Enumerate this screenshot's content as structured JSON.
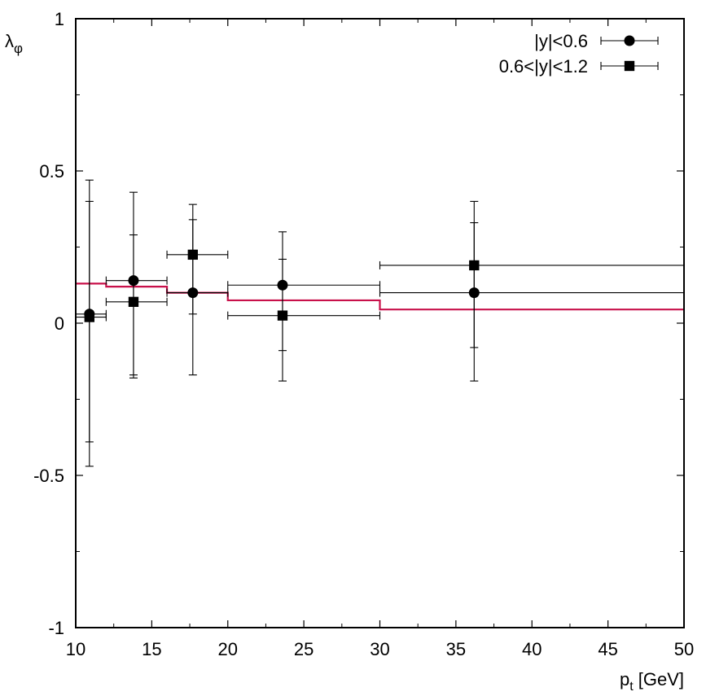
{
  "chart_data": {
    "type": "scatter",
    "title": "",
    "xlabel": {
      "main": "p",
      "sub": "t",
      "unit": " [GeV]"
    },
    "ylabel": {
      "main": "λ",
      "sub": "φ"
    },
    "xlim": [
      10,
      50
    ],
    "ylim": [
      -1,
      1
    ],
    "xticks": [
      10,
      15,
      20,
      25,
      30,
      35,
      40,
      45,
      50
    ],
    "yticks": [
      -1,
      -0.5,
      0,
      0.5,
      1
    ],
    "xtick_labels": [
      "10",
      "15",
      "20",
      "25",
      "30",
      "35",
      "40",
      "45",
      "50"
    ],
    "ytick_labels": [
      "-1",
      "-0.5",
      "0",
      "0.5",
      "1"
    ],
    "legend_position": "top-right",
    "series": [
      {
        "name": "|y|<0.6",
        "marker": "circle",
        "color": "#000000",
        "points": [
          {
            "x": 10.9,
            "y": 0.03,
            "xlo": 10,
            "xhi": 12,
            "ylo": -0.39,
            "yhi": 0.4
          },
          {
            "x": 13.8,
            "y": 0.14,
            "xlo": 12,
            "xhi": 16,
            "ylo": -0.17,
            "yhi": 0.43
          },
          {
            "x": 17.7,
            "y": 0.1,
            "xlo": 16,
            "xhi": 20,
            "ylo": -0.17,
            "yhi": 0.34
          },
          {
            "x": 23.6,
            "y": 0.125,
            "xlo": 20,
            "xhi": 30,
            "ylo": -0.09,
            "yhi": 0.3
          },
          {
            "x": 36.2,
            "y": 0.1,
            "xlo": 30,
            "xhi": 50,
            "ylo": -0.19,
            "yhi": 0.33
          }
        ]
      },
      {
        "name": "0.6<|y|<1.2",
        "marker": "square",
        "color": "#000000",
        "points": [
          {
            "x": 10.9,
            "y": 0.02,
            "xlo": 10,
            "xhi": 12,
            "ylo": -0.47,
            "yhi": 0.47
          },
          {
            "x": 13.8,
            "y": 0.07,
            "xlo": 12,
            "xhi": 16,
            "ylo": -0.18,
            "yhi": 0.29
          },
          {
            "x": 17.7,
            "y": 0.225,
            "xlo": 16,
            "xhi": 20,
            "ylo": 0.03,
            "yhi": 0.39
          },
          {
            "x": 23.6,
            "y": 0.025,
            "xlo": 20,
            "xhi": 30,
            "ylo": -0.19,
            "yhi": 0.21
          },
          {
            "x": 36.2,
            "y": 0.19,
            "xlo": 30,
            "xhi": 50,
            "ylo": -0.08,
            "yhi": 0.4
          }
        ]
      }
    ],
    "reference_line": {
      "type": "step",
      "color": "#c8104a",
      "bins": [
        {
          "xlo": 10,
          "xhi": 12,
          "y": 0.13
        },
        {
          "xlo": 12,
          "xhi": 16,
          "y": 0.12
        },
        {
          "xlo": 16,
          "xhi": 20,
          "y": 0.1
        },
        {
          "xlo": 20,
          "xhi": 30,
          "y": 0.075
        },
        {
          "xlo": 30,
          "xhi": 50,
          "y": 0.045
        }
      ]
    }
  }
}
